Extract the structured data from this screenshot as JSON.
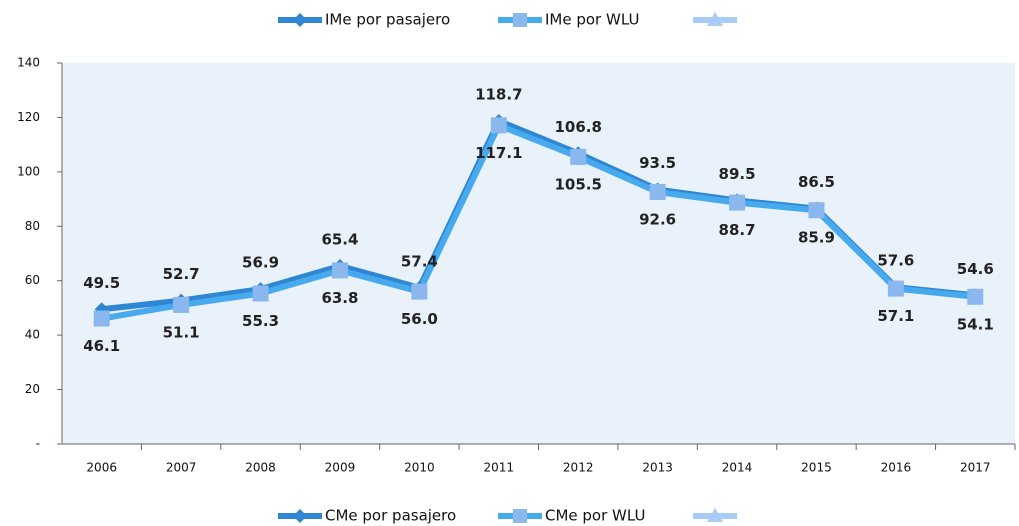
{
  "chart_data": {
    "type": "line",
    "categories": [
      "2006",
      "2007",
      "2008",
      "2009",
      "2010",
      "2011",
      "2012",
      "2013",
      "2014",
      "2015",
      "2016",
      "2017"
    ],
    "series": [
      {
        "name": "IMe por pasajero",
        "color": "#2f86d2",
        "marker": "diamond",
        "values": [
          49.5,
          52.7,
          56.9,
          65.4,
          57.4,
          118.7,
          106.8,
          93.5,
          89.5,
          86.5,
          57.6,
          54.6
        ]
      },
      {
        "name": "IMe por WLU",
        "color": "#47a9ee",
        "marker": "square",
        "values": [
          46.1,
          51.1,
          55.3,
          63.8,
          56.0,
          117.1,
          105.5,
          92.6,
          88.7,
          85.9,
          57.1,
          54.1
        ],
        "value_labels": [
          "46.1",
          "51.1",
          "55.3",
          "63.8",
          "56.0",
          "117.1",
          "105.5",
          "92.6",
          "88.7",
          "85.9",
          "57.1",
          "54.1"
        ]
      }
    ],
    "legend_bottom": [
      "CMe por pasajero",
      "CMe por WLU"
    ],
    "ylim": [
      0,
      140
    ],
    "yticks": [
      {
        "value": 0,
        "label": "-"
      },
      20,
      40,
      60,
      80,
      100,
      120,
      140
    ],
    "grid": false,
    "legend": "top"
  }
}
